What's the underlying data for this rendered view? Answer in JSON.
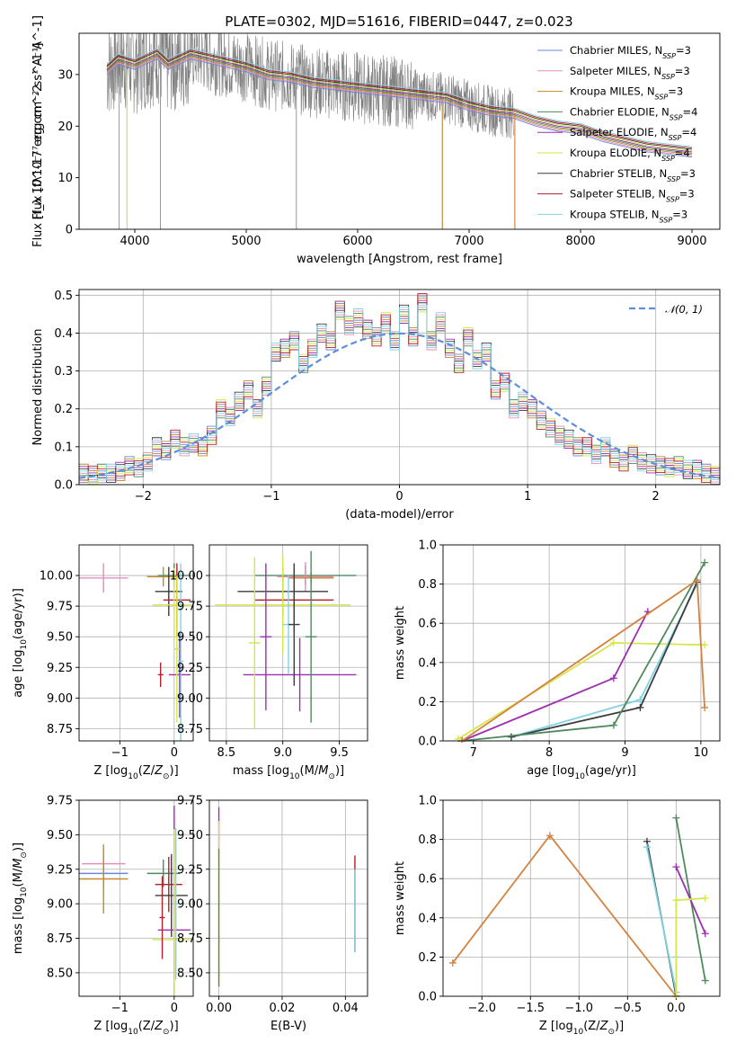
{
  "title": "PLATE=0302, MJD=51616, FIBERID=0447, z=0.023",
  "colors": {
    "data": "#808080",
    "ssp": [
      "#6b88d8",
      "#e78bbd",
      "#c28a2a",
      "#4e8a5c",
      "#9b2faf",
      "#d6e54a",
      "#3c3c3c",
      "#b3202c",
      "#7fd3e5"
    ],
    "normal": "#5b8fd9",
    "bestfit_a": "#d4823f",
    "bestfit_b": "#b58eb0"
  },
  "chart_data": [
    {
      "id": "spectrum",
      "type": "line",
      "xlabel": "wavelength [Angstrom, rest frame]",
      "ylabel": "Flux [f_λ 10^-17 erg cm^-2 s^-1 A^-1]",
      "xlim": [
        3500,
        9250
      ],
      "ylim": [
        0,
        38
      ],
      "xticks": [
        4000,
        5000,
        6000,
        7000,
        8000,
        9000
      ],
      "yticks": [
        0,
        10,
        20,
        30
      ],
      "grid": false,
      "legend_position": "top-right",
      "legend": [
        {
          "name": "Chabrier MILES",
          "nssp": "3"
        },
        {
          "name": "Salpeter MILES",
          "nssp": "3"
        },
        {
          "name": "Kroupa MILES",
          "nssp": "3"
        },
        {
          "name": "Chabrier ELODIE",
          "nssp": "4"
        },
        {
          "name": "Salpeter ELODIE",
          "nssp": "4"
        },
        {
          "name": "Kroupa ELODIE",
          "nssp": "4"
        },
        {
          "name": "Chabrier STELIB",
          "nssp": "3"
        },
        {
          "name": "Salpeter STELIB",
          "nssp": "3"
        },
        {
          "name": "Kroupa STELIB",
          "nssp": "3"
        }
      ],
      "model_x": [
        3750,
        3850,
        4000,
        4100,
        4200,
        4300,
        4400,
        4500,
        4700,
        4900,
        5000,
        5200,
        5400,
        5600,
        5800,
        6000,
        6200,
        6400,
        6600,
        6800,
        7000,
        7200,
        7400,
        7600,
        7800,
        8000,
        8200,
        8400,
        8600,
        8800,
        9000
      ],
      "model_y": [
        31,
        33,
        32,
        33,
        34,
        32,
        33,
        34,
        33,
        32,
        31.5,
        30,
        29.5,
        28.5,
        28,
        27.5,
        27,
        26.5,
        26,
        25.5,
        24,
        23,
        22.5,
        21,
        20,
        19.5,
        18,
        17,
        16,
        15.5,
        15
      ],
      "data_end": 7400,
      "drops": [
        3860,
        3930,
        4230,
        5450,
        6760,
        7410
      ]
    },
    {
      "id": "residuals",
      "type": "histogram",
      "xlabel": "(data-model)/error",
      "ylabel": "Normed distribution",
      "xlim": [
        -2.5,
        2.5
      ],
      "ylim": [
        0,
        0.515
      ],
      "xticks": [
        -2,
        -1,
        0,
        1,
        2
      ],
      "yticks": [
        0.0,
        0.1,
        0.2,
        0.3,
        0.4,
        0.5
      ],
      "grid": true,
      "legend": "𝒩(0, 1)",
      "legend_position": "top-right",
      "bin_width": 0.1,
      "bins_left": -2.5,
      "values": [
        0.03,
        0.025,
        0.03,
        0.03,
        0.035,
        0.05,
        0.045,
        0.06,
        0.1,
        0.09,
        0.12,
        0.1,
        0.11,
        0.1,
        0.13,
        0.2,
        0.18,
        0.22,
        0.25,
        0.2,
        0.26,
        0.35,
        0.36,
        0.38,
        0.32,
        0.36,
        0.4,
        0.38,
        0.46,
        0.42,
        0.44,
        0.41,
        0.39,
        0.43,
        0.38,
        0.45,
        0.39,
        0.48,
        0.38,
        0.43,
        0.36,
        0.32,
        0.39,
        0.33,
        0.35,
        0.25,
        0.27,
        0.2,
        0.22,
        0.2,
        0.17,
        0.15,
        0.13,
        0.12,
        0.1,
        0.1,
        0.08,
        0.1,
        0.07,
        0.06,
        0.08,
        0.06,
        0.055,
        0.05,
        0.045,
        0.05,
        0.04,
        0.04,
        0.03,
        0.025
      ]
    },
    {
      "id": "age-vs-z",
      "type": "errorbar",
      "xlabel": "Z [log10(Z/Z⊙)]",
      "ylabel": "age  [log10(age/yr)]",
      "xlim": [
        -1.75,
        0.35
      ],
      "ylim": [
        8.65,
        10.25
      ],
      "xticks": [
        -1,
        0
      ],
      "yticks": [
        8.75,
        9.0,
        9.25,
        9.5,
        9.75,
        10.0
      ],
      "points": [
        {
          "x": -1.3,
          "y": 9.98,
          "xerr": 0.45,
          "yerr": 0.12,
          "c": 1
        },
        {
          "x": -0.2,
          "y": 9.99,
          "xerr": 0.3,
          "yerr": 0.08,
          "c": 2
        },
        {
          "x": 0.0,
          "y": 10.0,
          "xerr": 0.3,
          "yerr": 0.1,
          "c": 3
        },
        {
          "x": -0.1,
          "y": 9.87,
          "xerr": 0.25,
          "yerr": 0.2,
          "c": 6
        },
        {
          "x": 0.05,
          "y": 9.8,
          "xerr": 0.25,
          "yerr": 0.3,
          "c": 7
        },
        {
          "x": 0.0,
          "y": 9.76,
          "xerr": 0.4,
          "yerr": 0.3,
          "c": 5
        },
        {
          "x": 0.1,
          "y": 9.19,
          "xerr": 0.2,
          "yerr": 0.35,
          "c": 4
        },
        {
          "x": -0.25,
          "y": 9.19,
          "xerr": 0.05,
          "yerr": 0.1,
          "c": 7
        },
        {
          "x": 0.12,
          "y": 9.3,
          "xerr": 0.05,
          "yerr": 0.8,
          "c": 8
        },
        {
          "x": 0.05,
          "y": 9.4,
          "xerr": 0.05,
          "yerr": 0.6,
          "c": 5
        }
      ]
    },
    {
      "id": "age-vs-mass",
      "type": "errorbar",
      "xlabel": "mass [log10(M/M⊙)]",
      "ylabel": "",
      "xlim": [
        8.35,
        9.75
      ],
      "ylim": [
        8.65,
        10.25
      ],
      "xticks": [
        8.5,
        9.0,
        9.5
      ],
      "yticks": [
        8.75,
        9.0,
        9.25,
        9.5,
        9.75,
        10.0
      ],
      "points": [
        {
          "x": 9.2,
          "y": 10.0,
          "xerr": 0.45,
          "yerr": 0.08,
          "c": 3
        },
        {
          "x": 9.2,
          "y": 9.99,
          "xerr": 0.25,
          "yerr": 0.12,
          "c": 1
        },
        {
          "x": 9.25,
          "y": 9.98,
          "xerr": 0.2,
          "yerr": 0.05,
          "c": 2
        },
        {
          "x": 9.0,
          "y": 9.87,
          "xerr": 0.4,
          "yerr": 0.2,
          "c": 6
        },
        {
          "x": 9.1,
          "y": 9.8,
          "xerr": 0.35,
          "yerr": 0.25,
          "c": 7
        },
        {
          "x": 9.0,
          "y": 9.76,
          "xerr": 0.6,
          "yerr": 0.4,
          "c": 5
        },
        {
          "x": 9.15,
          "y": 9.19,
          "xerr": 0.5,
          "yerr": 0.3,
          "c": 4
        },
        {
          "x": 8.75,
          "y": 9.45,
          "xerr": 0.05,
          "yerr": 0.7,
          "c": 5
        },
        {
          "x": 8.85,
          "y": 9.5,
          "xerr": 0.05,
          "yerr": 0.6,
          "c": 4
        },
        {
          "x": 9.05,
          "y": 9.6,
          "xerr": 0.05,
          "yerr": 0.4,
          "c": 8
        },
        {
          "x": 9.1,
          "y": 9.6,
          "xerr": 0.05,
          "yerr": 0.5,
          "c": 6
        },
        {
          "x": 9.25,
          "y": 9.5,
          "xerr": 0.05,
          "yerr": 0.7,
          "c": 3
        }
      ]
    },
    {
      "id": "massweight-vs-age",
      "type": "line",
      "xlabel": "age  [log10(age/yr)]",
      "ylabel": "mass weight",
      "xlim": [
        6.6,
        10.25
      ],
      "ylim": [
        0,
        1.0
      ],
      "xticks": [
        7,
        8,
        9,
        10
      ],
      "yticks": [
        0.0,
        0.2,
        0.4,
        0.6,
        0.8,
        1.0
      ],
      "series": [
        {
          "c": 5,
          "x": [
            6.8,
            8.85,
            10.05
          ],
          "y": [
            0.01,
            0.5,
            0.49
          ]
        },
        {
          "c": 4,
          "x": [
            6.85,
            8.85,
            9.3
          ],
          "y": [
            0.0,
            0.32,
            0.66
          ]
        },
        {
          "c": 8,
          "x": [
            7.5,
            9.2,
            9.95
          ],
          "y": [
            0.02,
            0.21,
            0.8
          ]
        },
        {
          "c": 6,
          "x": [
            7.5,
            9.2,
            9.95
          ],
          "y": [
            0.02,
            0.17,
            0.81
          ]
        },
        {
          "c": 3,
          "x": [
            6.85,
            8.85,
            10.05
          ],
          "y": [
            0.0,
            0.08,
            0.91
          ]
        },
        {
          "c": 1,
          "x": [
            6.85,
            9.95,
            10.05
          ],
          "y": [
            0.0,
            0.82,
            0.17
          ]
        }
      ]
    },
    {
      "id": "mass-vs-z",
      "type": "errorbar",
      "xlabel": "Z [log10(Z/Z⊙)]",
      "ylabel": "mass [log10(M/M⊙)]",
      "xlim": [
        -1.75,
        0.35
      ],
      "ylim": [
        8.33,
        9.75
      ],
      "xticks": [
        -1,
        0
      ],
      "yticks": [
        8.5,
        8.75,
        9.0,
        9.25,
        9.5,
        9.75
      ],
      "points": [
        {
          "x": -1.3,
          "y": 9.29,
          "xerr": 0.4,
          "yerr": 0.1,
          "c": 1
        },
        {
          "x": -1.3,
          "y": 9.22,
          "xerr": 0.45,
          "yerr": 0.1,
          "c": 0
        },
        {
          "x": -1.3,
          "y": 9.18,
          "xerr": 0.45,
          "yerr": 0.25,
          "c": 2
        },
        {
          "x": -0.2,
          "y": 9.22,
          "xerr": 0.3,
          "yerr": 0.1,
          "c": 3
        },
        {
          "x": -0.1,
          "y": 9.14,
          "xerr": 0.25,
          "yerr": 0.2,
          "c": 7
        },
        {
          "x": -0.05,
          "y": 9.06,
          "xerr": 0.3,
          "yerr": 0.3,
          "c": 6
        },
        {
          "x": 0.0,
          "y": 8.81,
          "xerr": 0.3,
          "yerr": 0.9,
          "c": 4
        },
        {
          "x": 0.0,
          "y": 8.74,
          "xerr": 0.4,
          "yerr": 0.8,
          "c": 5
        },
        {
          "x": 0.03,
          "y": 9.0,
          "xerr": 0.05,
          "yerr": 0.55,
          "c": 8
        },
        {
          "x": -0.22,
          "y": 8.9,
          "xerr": 0.05,
          "yerr": 0.3,
          "c": 7
        }
      ]
    },
    {
      "id": "mass-vs-ebv",
      "type": "errorbar",
      "xlabel": "E(B-V)",
      "ylabel": "",
      "xlim": [
        -0.003,
        0.047
      ],
      "ylim": [
        8.33,
        9.75
      ],
      "xticks": [
        0.0,
        0.02,
        0.04
      ],
      "yticks": [
        8.5,
        8.75,
        9.0,
        9.25,
        9.5,
        9.75
      ],
      "points": [
        {
          "x": 0.0,
          "y": 9.55,
          "xerr": 0.0,
          "yerr": 0.15,
          "c": 4
        },
        {
          "x": 0.0,
          "y": 9.0,
          "xerr": 0.0,
          "yerr": 0.6,
          "c": 5
        },
        {
          "x": 0.0,
          "y": 8.9,
          "xerr": 0.0,
          "yerr": 0.5,
          "c": 3
        },
        {
          "x": 0.043,
          "y": 9.0,
          "xerr": 0.0,
          "yerr": 0.35,
          "c": 7
        },
        {
          "x": 0.043,
          "y": 8.95,
          "xerr": 0.0,
          "yerr": 0.3,
          "c": 8
        }
      ]
    },
    {
      "id": "massweight-vs-z",
      "type": "line",
      "xlabel": "Z [log10(Z/Z⊙)]",
      "ylabel": "mass weight",
      "xlim": [
        -2.4,
        0.45
      ],
      "ylim": [
        0,
        1.0
      ],
      "xticks": [
        -2.0,
        -1.5,
        -1.0,
        -0.5,
        0.0
      ],
      "yticks": [
        0.0,
        0.2,
        0.4,
        0.6,
        0.8,
        1.0
      ],
      "series": [
        {
          "c": 1,
          "x": [
            -2.3,
            -1.3,
            0.0
          ],
          "y": [
            0.17,
            0.82,
            0.0
          ]
        },
        {
          "c": 6,
          "x": [
            -0.3,
            0.0
          ],
          "y": [
            0.79,
            0.0
          ]
        },
        {
          "c": 8,
          "x": [
            -0.3,
            0.0,
            0.0
          ],
          "y": [
            0.76,
            0.02,
            0.2
          ]
        },
        {
          "c": 3,
          "x": [
            0.0,
            0.3
          ],
          "y": [
            0.91,
            0.08
          ]
        },
        {
          "c": 4,
          "x": [
            0.0,
            0.3
          ],
          "y": [
            0.66,
            0.32
          ]
        },
        {
          "c": 5,
          "x": [
            0.0,
            0.0,
            0.3
          ],
          "y": [
            0.0,
            0.49,
            0.5
          ]
        }
      ]
    }
  ]
}
